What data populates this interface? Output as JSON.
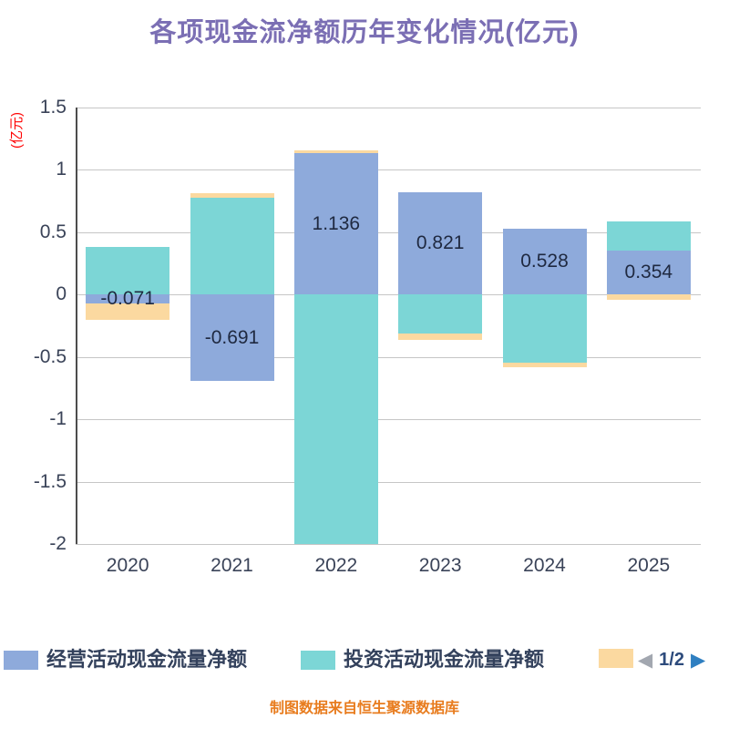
{
  "title": "各项现金流净额历年变化情况(亿元)",
  "source_note": "制图数据来自恒生聚源数据库",
  "pagination": {
    "prev_icon": "◀",
    "label": "1/2",
    "next_icon": "▶"
  },
  "chart_data": {
    "type": "bar",
    "stacked": true,
    "title": "各项现金流净额历年变化情况(亿元)",
    "ylabel": "(亿元)",
    "categories": [
      "2020",
      "2021",
      "2022",
      "2023",
      "2024",
      "2025"
    ],
    "series": [
      {
        "name": "经营活动现金流量净额",
        "color": "#8EAADB",
        "values": [
          -0.071,
          -0.691,
          1.136,
          0.821,
          0.528,
          0.354
        ]
      },
      {
        "name": "投资活动现金流量净额",
        "color": "#7CD6D6",
        "values": [
          0.38,
          0.78,
          -2.0,
          -0.31,
          -0.545,
          0.23
        ]
      },
      {
        "name": "",
        "color": "#FBD9A0",
        "values": [
          -0.13,
          0.03,
          0.02,
          -0.05,
          -0.04,
          -0.04
        ]
      }
    ],
    "value_labels": [
      "-0.071",
      "-0.691",
      "1.136",
      "0.821",
      "0.528",
      "0.354"
    ],
    "ylim": [
      -2,
      1.5
    ],
    "yticks": [
      "1.5",
      "1",
      "0.5",
      "0",
      "-0.5",
      "-1",
      "-1.5",
      "-2"
    ],
    "grid": true,
    "legend_position": "bottom"
  },
  "colors": {
    "title": "#7B6FB4",
    "axis_text": "#3A4358",
    "value_label": "#1F2940",
    "grid": "#C6C6C6",
    "y_unit_label": "#FF0000",
    "source_note": "#E87C1E",
    "page_prev": "#A2A7B0",
    "page_next": "#2F7FC1",
    "page_label": "#2D4B7C"
  }
}
